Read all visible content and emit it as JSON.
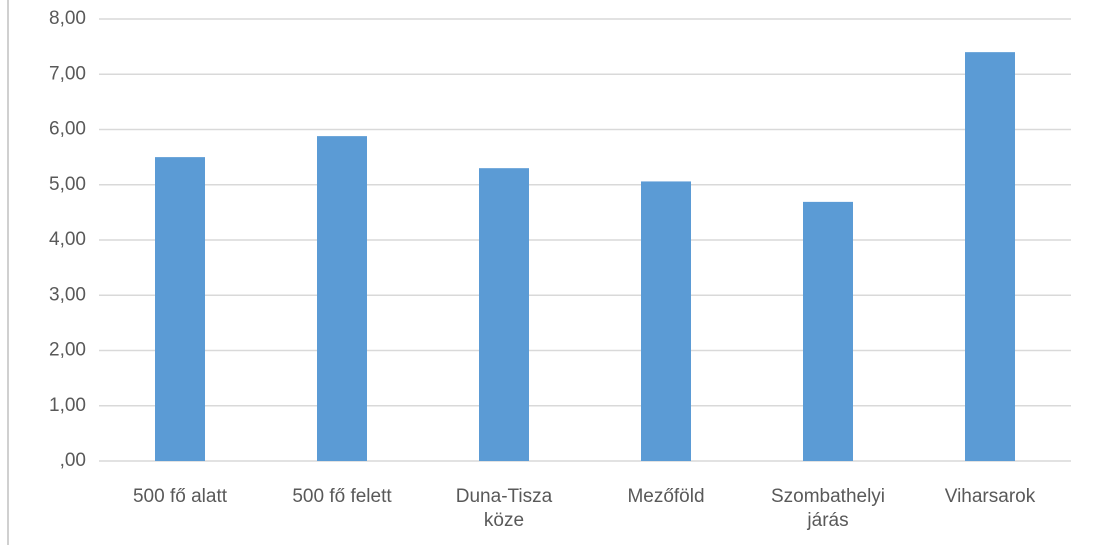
{
  "chart_data": {
    "type": "bar",
    "categories": [
      "500 fő alatt",
      "500 fő felett",
      "Duna-Tisza köze",
      "Mezőföld",
      "Szombathelyi járás",
      "Viharsarok"
    ],
    "values": [
      5.5,
      5.88,
      5.3,
      5.06,
      4.69,
      7.4
    ],
    "color": "#5b9bd5",
    "ylim": [
      0,
      8
    ],
    "yticks": [
      {
        "value": 0,
        "label": ",00"
      },
      {
        "value": 1,
        "label": "1,00"
      },
      {
        "value": 2,
        "label": "2,00"
      },
      {
        "value": 3,
        "label": "3,00"
      },
      {
        "value": 4,
        "label": "4,00"
      },
      {
        "value": 5,
        "label": "5,00"
      },
      {
        "value": 6,
        "label": "6,00"
      },
      {
        "value": 7,
        "label": "7,00"
      },
      {
        "value": 8,
        "label": "8,00"
      }
    ],
    "grid": true
  }
}
